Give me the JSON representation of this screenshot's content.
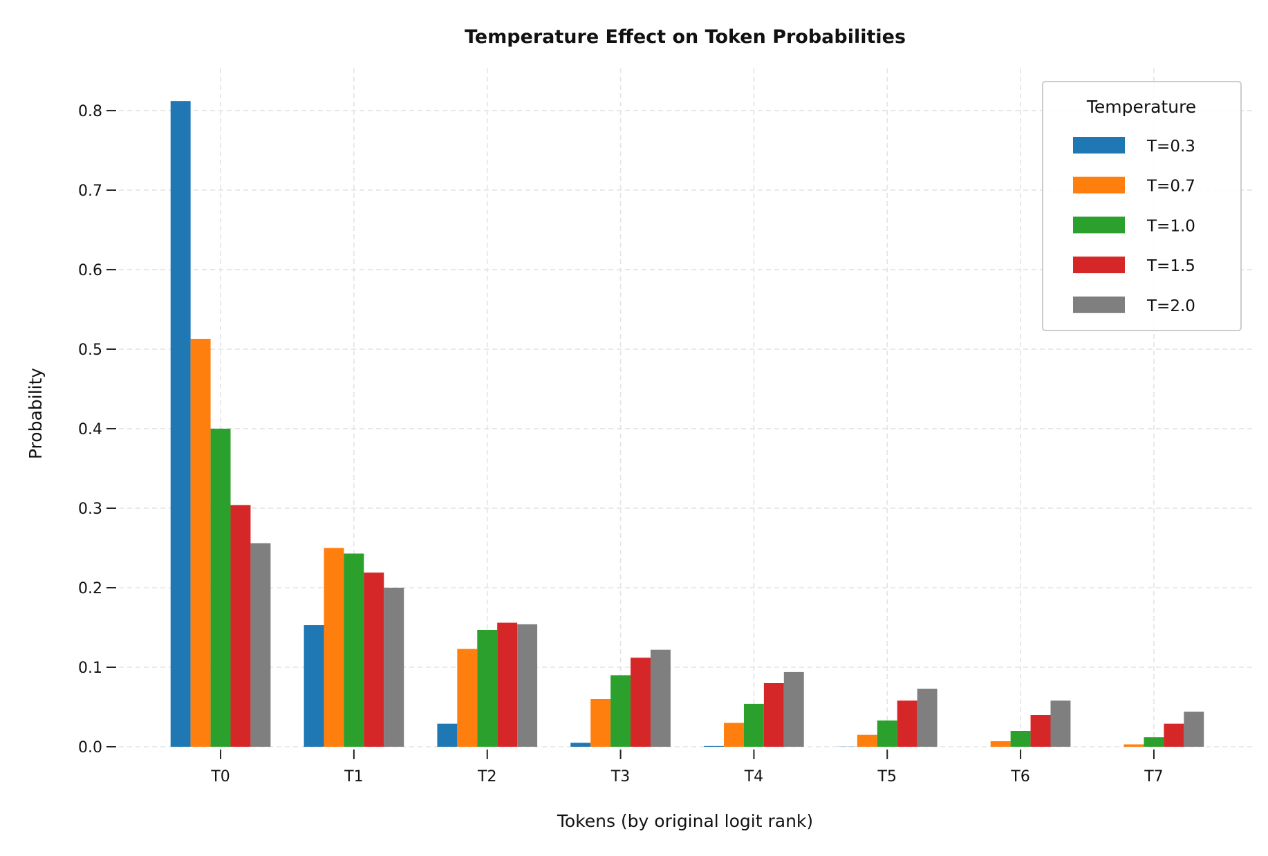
{
  "chart_data": {
    "type": "bar",
    "title": "Temperature Effect on Token Probabilities",
    "xlabel": "Tokens (by original logit rank)",
    "ylabel": "Probability",
    "categories": [
      "T0",
      "T1",
      "T2",
      "T3",
      "T4",
      "T5",
      "T6",
      "T7"
    ],
    "ylim": [
      0,
      0.853
    ],
    "yticks": [
      "0.0",
      "0.1",
      "0.2",
      "0.3",
      "0.4",
      "0.5",
      "0.6",
      "0.7",
      "0.8"
    ],
    "grid": true,
    "legend": {
      "title": "Temperature",
      "placement": "top-right"
    },
    "series": [
      {
        "name": "T=0.3",
        "color": "#1f77b4",
        "values": [
          0.812,
          0.153,
          0.029,
          0.005,
          0.001,
          0.0002,
          0.0,
          0.0
        ]
      },
      {
        "name": "T=0.7",
        "color": "#ff7f0e",
        "values": [
          0.513,
          0.25,
          0.123,
          0.06,
          0.03,
          0.015,
          0.007,
          0.003
        ]
      },
      {
        "name": "T=1.0",
        "color": "#2ca02c",
        "values": [
          0.4,
          0.243,
          0.147,
          0.09,
          0.054,
          0.033,
          0.02,
          0.012
        ]
      },
      {
        "name": "T=1.5",
        "color": "#d62728",
        "values": [
          0.304,
          0.219,
          0.156,
          0.112,
          0.08,
          0.058,
          0.04,
          0.029
        ]
      },
      {
        "name": "T=2.0",
        "color": "#7f7f7f",
        "values": [
          0.256,
          0.2,
          0.154,
          0.122,
          0.094,
          0.073,
          0.058,
          0.044
        ]
      }
    ]
  }
}
